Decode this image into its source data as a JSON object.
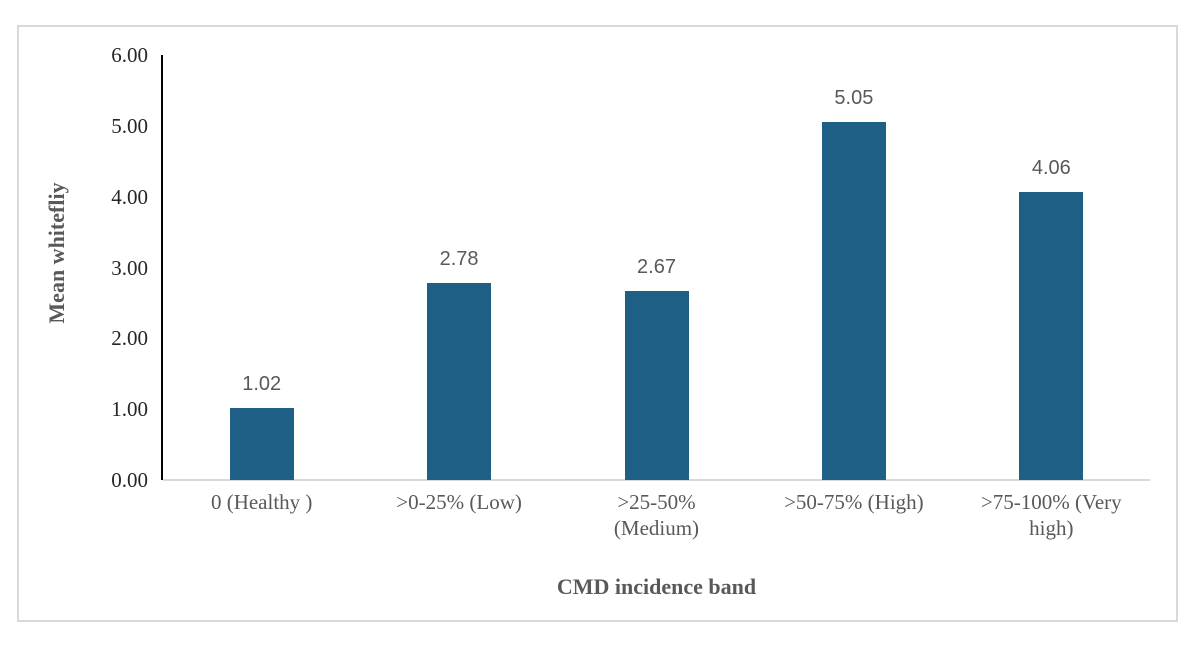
{
  "chart_data": {
    "type": "bar",
    "title": "",
    "categories": [
      "0 (Healthy )",
      ">0-25% (Low)",
      ">25-50% (Medium)",
      ">50-75% (High)",
      ">75-100% (Very high)"
    ],
    "category_display_lines": [
      [
        "0 (Healthy )"
      ],
      [
        ">0-25% (Low)"
      ],
      [
        ">25-50%",
        "(Medium)"
      ],
      [
        ">50-75% (High)"
      ],
      [
        ">75-100% (Very",
        "high)"
      ]
    ],
    "values": [
      1.02,
      2.78,
      2.67,
      5.05,
      4.06
    ],
    "data_labels": [
      "1.02",
      "2.78",
      "2.67",
      "5.05",
      "4.06"
    ],
    "xlabel": "CMD incidence band",
    "ylabel": "Mean whitefliy",
    "ylim": [
      0,
      6
    ],
    "ytick_interval": 1,
    "ytick_labels": [
      "0.00",
      "1.00",
      "2.00",
      "3.00",
      "4.00",
      "5.00",
      "6.00"
    ],
    "grid": false,
    "legend": "none",
    "colors": {
      "bar": "#1E5F85",
      "ytick_text": "#262626",
      "gray_text": "#595959",
      "axis_line": "#000000",
      "baseline": "#D9D9D9",
      "frame_border": "#D9D9D9",
      "background": "#FFFFFF"
    }
  }
}
